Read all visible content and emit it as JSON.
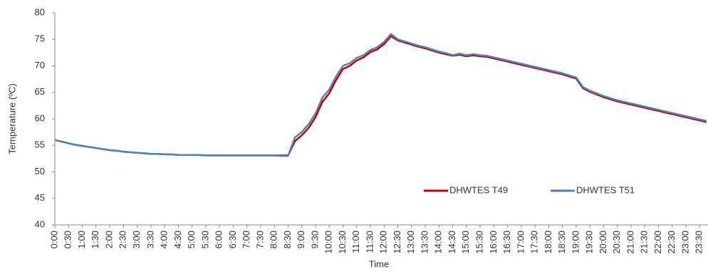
{
  "chart_data": {
    "type": "line",
    "x_label": "Time",
    "y_label": "Temperature  (ºC)",
    "categories": [
      "0:00",
      null,
      "0:30",
      null,
      "1:00",
      null,
      "1:30",
      null,
      "2:00",
      null,
      "2:30",
      null,
      "3:00",
      null,
      "3:30",
      null,
      "4:00",
      null,
      "4:30",
      null,
      "5:00",
      null,
      "5:30",
      null,
      "6:00",
      null,
      "6:30",
      null,
      "7:00",
      null,
      "7:30",
      null,
      "8:00",
      null,
      "8:30",
      null,
      "9:00",
      null,
      "9:30",
      null,
      "10:00",
      null,
      "10:30",
      null,
      "11:00",
      null,
      "11:30",
      null,
      "12:00",
      null,
      "12:30",
      null,
      "13:00",
      null,
      "13:30",
      null,
      "14:00",
      null,
      "14:30",
      null,
      "15:00",
      null,
      "15:30",
      null,
      "16:00",
      null,
      "16:30",
      null,
      "17:00",
      null,
      "17:30",
      null,
      "18:00",
      null,
      "18:30",
      null,
      "19:00",
      null,
      "19:30",
      null,
      "20:00",
      null,
      "20:30",
      null,
      "21:00",
      null,
      "21:30",
      null,
      "22:00",
      null,
      "22:30",
      null,
      "23:00",
      null,
      "23:30",
      null
    ],
    "series": [
      {
        "name": "DHWTES T49",
        "color": "#c00000",
        "values": [
          56.0,
          55.7,
          55.4,
          55.1,
          54.9,
          54.7,
          54.5,
          54.3,
          54.1,
          54.0,
          53.8,
          53.7,
          53.6,
          53.5,
          53.4,
          53.4,
          53.3,
          53.3,
          53.2,
          53.2,
          53.2,
          53.2,
          53.1,
          53.1,
          53.1,
          53.1,
          53.1,
          53.1,
          53.1,
          53.1,
          53.1,
          53.1,
          53.1,
          53.1,
          53.1,
          55.8,
          56.9,
          58.3,
          60.3,
          63.2,
          64.8,
          67.3,
          69.4,
          70.0,
          71.0,
          71.6,
          72.6,
          73.1,
          74.1,
          75.6,
          74.8,
          74.4,
          74.0,
          73.6,
          73.3,
          72.9,
          72.5,
          72.2,
          71.9,
          72.1,
          71.8,
          72.0,
          71.8,
          71.7,
          71.4,
          71.1,
          70.8,
          70.5,
          70.2,
          69.9,
          69.6,
          69.3,
          69.0,
          68.7,
          68.4,
          68.0,
          67.6,
          65.8,
          65.1,
          64.6,
          64.1,
          63.7,
          63.3,
          63.0,
          62.7,
          62.4,
          62.1,
          61.8,
          61.5,
          61.2,
          60.9,
          60.6,
          60.3,
          60.0,
          59.7,
          59.4
        ]
      },
      {
        "name": "DHWTES T51",
        "color": "#4f81bd",
        "values": [
          56.0,
          55.7,
          55.4,
          55.1,
          54.9,
          54.7,
          54.5,
          54.3,
          54.1,
          54.0,
          53.8,
          53.7,
          53.6,
          53.5,
          53.4,
          53.4,
          53.3,
          53.3,
          53.2,
          53.2,
          53.2,
          53.2,
          53.1,
          53.1,
          53.1,
          53.1,
          53.1,
          53.1,
          53.1,
          53.1,
          53.1,
          53.1,
          53.1,
          53.0,
          53.0,
          56.5,
          57.5,
          59.0,
          61.0,
          64.0,
          65.5,
          68.0,
          70.0,
          70.5,
          71.5,
          72.0,
          73.0,
          73.5,
          74.5,
          76.0,
          75.0,
          74.6,
          74.2,
          73.8,
          73.5,
          73.1,
          72.7,
          72.4,
          72.0,
          72.3,
          72.0,
          72.2,
          72.0,
          71.9,
          71.6,
          71.3,
          71.0,
          70.7,
          70.4,
          70.1,
          69.8,
          69.5,
          69.2,
          68.9,
          68.6,
          68.2,
          67.8,
          66.0,
          65.3,
          64.8,
          64.3,
          63.9,
          63.5,
          63.2,
          62.9,
          62.6,
          62.3,
          62.0,
          61.7,
          61.4,
          61.1,
          60.8,
          60.5,
          60.2,
          59.9,
          59.6
        ]
      }
    ],
    "ylim": [
      40,
      80
    ],
    "yticks": [
      40,
      45,
      50,
      55,
      60,
      65,
      70,
      75,
      80
    ],
    "grid": false,
    "legend": "bottom-right"
  }
}
